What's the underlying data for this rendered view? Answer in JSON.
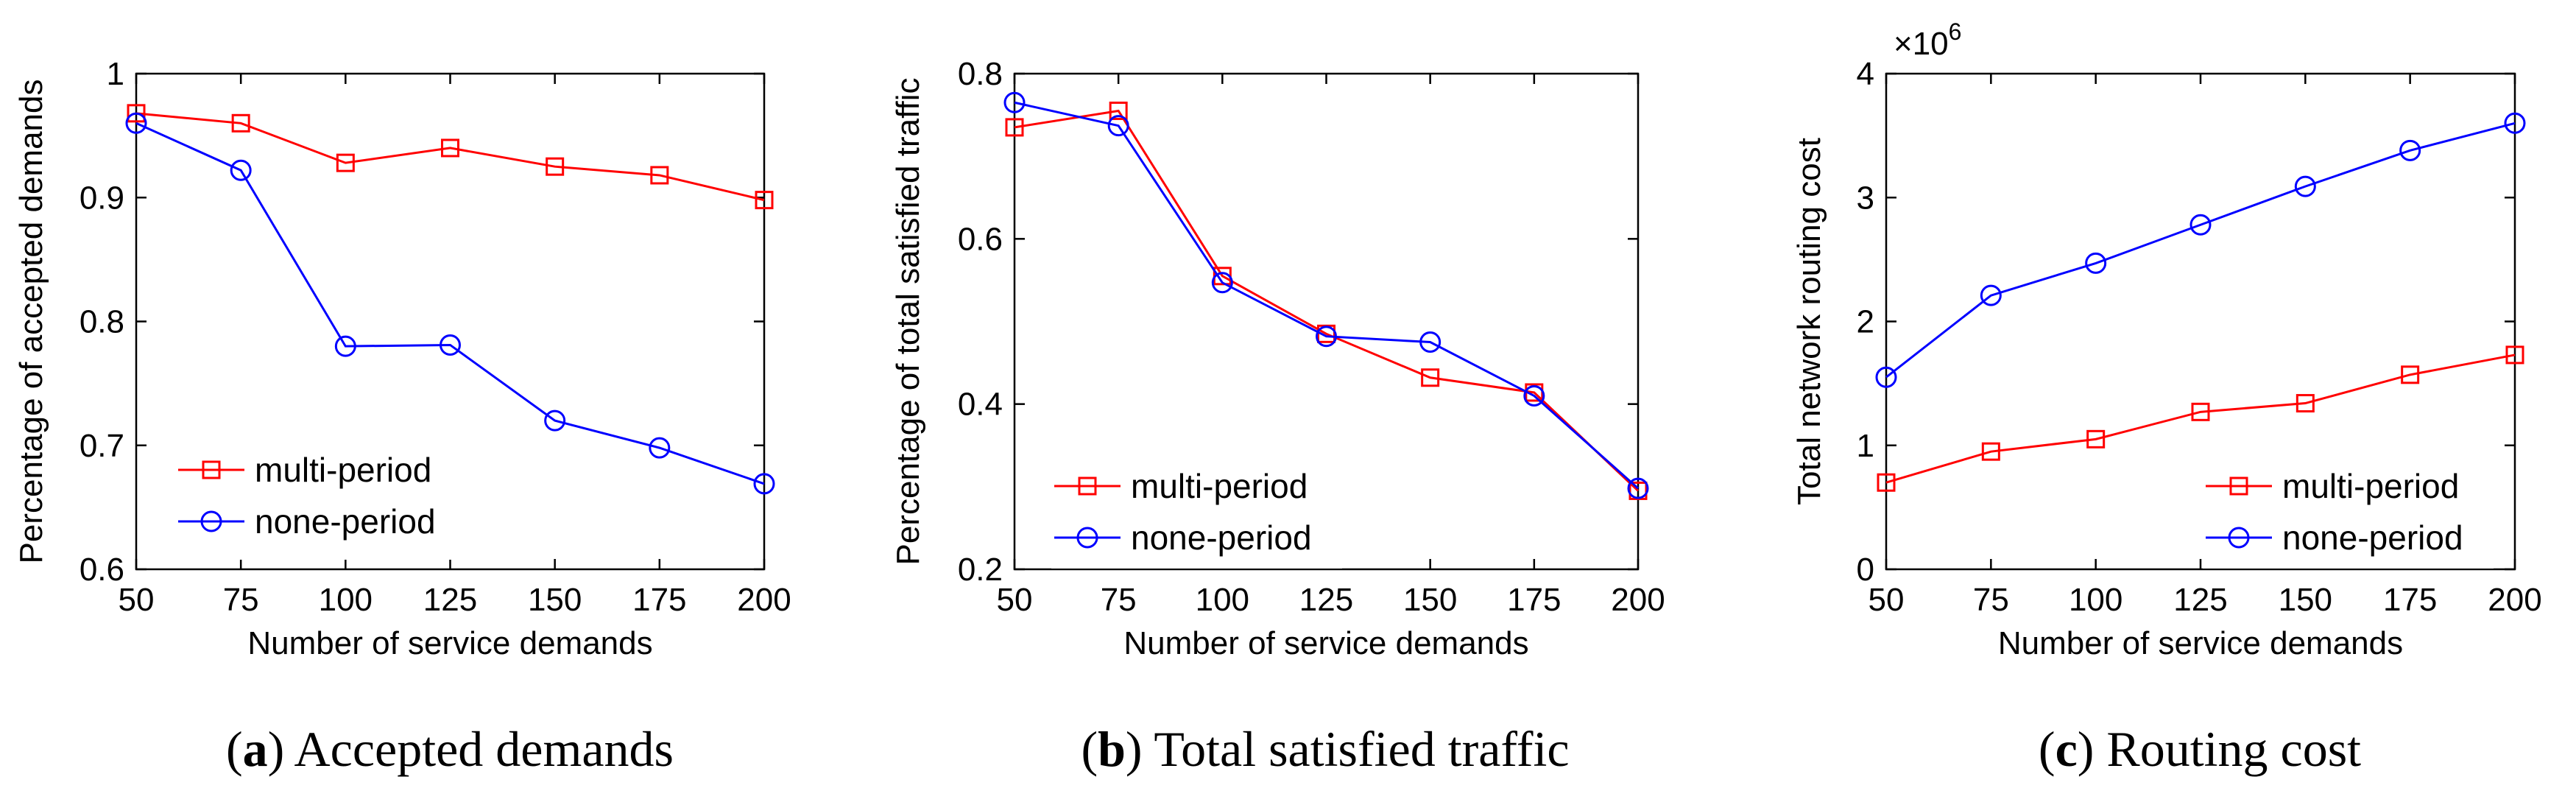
{
  "series_colors": {
    "multi-period": "#ff0000",
    "none-period": "#0000ff"
  },
  "chart_data": [
    {
      "type": "line",
      "caption_letter": "a",
      "caption_text": "Accepted demands",
      "xlabel": "Number of service demands",
      "ylabel": "Percentage of accepted demands",
      "x": [
        50,
        75,
        100,
        125,
        150,
        175,
        200
      ],
      "xlim": [
        50,
        200
      ],
      "ylim": [
        0.6,
        1.0
      ],
      "yticks": [
        0.6,
        0.7,
        0.8,
        0.9,
        1.0
      ],
      "ytick_labels": [
        "0.6",
        "0.7",
        "0.8",
        "0.9",
        "1"
      ],
      "xtick_labels": [
        "50",
        "75",
        "100",
        "125",
        "150",
        "175",
        "200"
      ],
      "multiplier": "",
      "legend_position": "bottom-left",
      "series": [
        {
          "name": "multi-period",
          "marker": "square",
          "values": [
            0.968,
            0.96,
            0.928,
            0.94,
            0.925,
            0.918,
            0.898
          ]
        },
        {
          "name": "none-period",
          "marker": "circle",
          "values": [
            0.96,
            0.922,
            0.78,
            0.781,
            0.72,
            0.698,
            0.669
          ]
        }
      ]
    },
    {
      "type": "line",
      "caption_letter": "b",
      "caption_text": "Total satisfied traffic",
      "xlabel": "Number of service demands",
      "ylabel": "Percentage of total satisfied traffic",
      "x": [
        50,
        75,
        100,
        125,
        150,
        175,
        200
      ],
      "xlim": [
        50,
        200
      ],
      "ylim": [
        0.2,
        0.8
      ],
      "yticks": [
        0.2,
        0.4,
        0.6,
        0.8
      ],
      "ytick_labels": [
        "0.2",
        "0.4",
        "0.6",
        "0.8"
      ],
      "xtick_labels": [
        "50",
        "75",
        "100",
        "125",
        "150",
        "175",
        "200"
      ],
      "multiplier": "",
      "legend_position": "bottom-left",
      "series": [
        {
          "name": "multi-period",
          "marker": "square",
          "values": [
            0.735,
            0.755,
            0.555,
            0.485,
            0.432,
            0.414,
            0.295
          ]
        },
        {
          "name": "none-period",
          "marker": "circle",
          "values": [
            0.765,
            0.737,
            0.547,
            0.482,
            0.475,
            0.41,
            0.298
          ]
        }
      ]
    },
    {
      "type": "line",
      "caption_letter": "c",
      "caption_text": "Routing cost",
      "xlabel": "Number of service demands",
      "ylabel": "Total network routing cost",
      "x": [
        50,
        75,
        100,
        125,
        150,
        175,
        200
      ],
      "xlim": [
        50,
        200
      ],
      "ylim": [
        0,
        4
      ],
      "yticks": [
        0,
        1,
        2,
        3,
        4
      ],
      "ytick_labels": [
        "0",
        "1",
        "2",
        "3",
        "4"
      ],
      "xtick_labels": [
        "50",
        "75",
        "100",
        "125",
        "150",
        "175",
        "200"
      ],
      "multiplier_base": "×10",
      "multiplier_exp": "6",
      "legend_position": "bottom-right",
      "series": [
        {
          "name": "multi-period",
          "marker": "square",
          "values": [
            0.7,
            0.95,
            1.05,
            1.27,
            1.34,
            1.57,
            1.73
          ]
        },
        {
          "name": "none-period",
          "marker": "circle",
          "values": [
            1.55,
            2.21,
            2.47,
            2.78,
            3.09,
            3.38,
            3.6
          ]
        }
      ]
    }
  ]
}
